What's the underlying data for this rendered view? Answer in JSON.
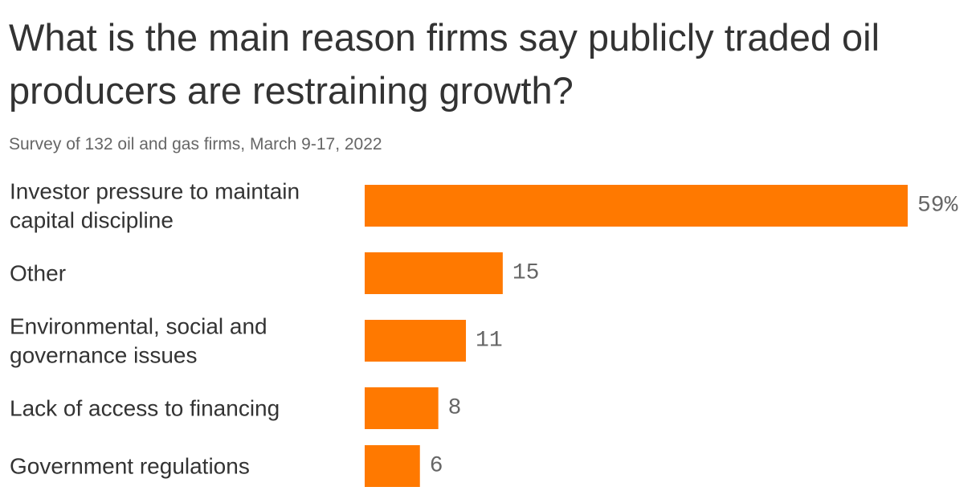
{
  "header": {
    "title": "What is the main reason firms say publicly traded oil producers are restraining growth?",
    "subtitle": "Survey of 132 oil and gas firms, March 9-17, 2022"
  },
  "colors": {
    "bar": "#ff7900",
    "label": "#333333",
    "value": "#666666"
  },
  "chart_data": {
    "type": "bar",
    "orientation": "horizontal",
    "title": "What is the main reason firms say publicly traded oil producers are restraining growth?",
    "subtitle": "Survey of 132 oil and gas firms, March 9-17, 2022",
    "categories": [
      [
        "Investor pressure to maintain",
        "capital discipline"
      ],
      [
        "Other"
      ],
      [
        "Environmental, social and",
        "governance issues"
      ],
      [
        "Lack of access to financing"
      ],
      [
        "Government regulations"
      ]
    ],
    "values": [
      59,
      15,
      11,
      8,
      6
    ],
    "value_labels": [
      "59%",
      "15",
      "11",
      "8",
      "6"
    ],
    "xlim": [
      0,
      59
    ],
    "grid": false,
    "legend": "none"
  }
}
